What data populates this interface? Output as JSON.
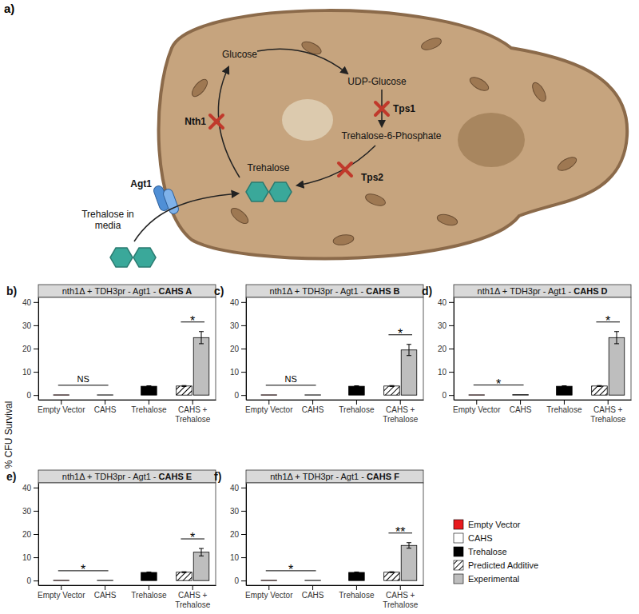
{
  "diagram": {
    "panel": "a)",
    "metabolites": [
      "Glucose",
      "UDP-Glucose",
      "Trehalose-6-Phosphate",
      "Trehalose"
    ],
    "enzymes": [
      {
        "label": "Nth1",
        "blocked": true
      },
      {
        "label": "Tps1",
        "blocked": true
      },
      {
        "label": "Tps2",
        "blocked": true
      },
      {
        "label": "Agt1",
        "blocked": false
      }
    ],
    "media_label": [
      "Trehalose in",
      "media"
    ]
  },
  "figure": {
    "y_label": "% CFU Survival"
  },
  "chart_data": [
    {
      "type": "bar",
      "panel": "b)",
      "title": "nth1Δ + TDH3pr - Agt1 - CAHS A",
      "categories": [
        "Empty Vector",
        "CAHS",
        "Trehalose",
        "CAHS + Trehalose"
      ],
      "series": [
        {
          "name": "Empty Vector",
          "color": "#e8191d",
          "values": [
            0.1,
            null,
            null,
            null
          ],
          "errors": [
            null,
            null,
            null,
            null
          ]
        },
        {
          "name": "CAHS",
          "color": "#ffffff",
          "values": [
            null,
            0.1,
            null,
            null
          ],
          "errors": [
            null,
            null,
            null,
            null
          ]
        },
        {
          "name": "Trehalose",
          "color": "#000000",
          "values": [
            null,
            null,
            3.8,
            null
          ],
          "errors": [
            null,
            null,
            0.2,
            null
          ]
        },
        {
          "name": "Predicted Additive",
          "color": "#ffffff",
          "marker": "hatch",
          "values": [
            null,
            null,
            null,
            3.9
          ],
          "errors": [
            null,
            null,
            null,
            0.2
          ]
        },
        {
          "name": "Experimental",
          "color": "#bebebe",
          "values": [
            null,
            null,
            null,
            24.7
          ],
          "errors": [
            null,
            null,
            null,
            2.6
          ]
        }
      ],
      "ylim": [
        -2,
        42
      ],
      "yticks": [
        0,
        10,
        20,
        30,
        40
      ],
      "grid": false,
      "significance": [
        {
          "label": "NS",
          "series": [
            "Empty Vector",
            "CAHS"
          ]
        },
        {
          "label": "*",
          "series": [
            "Predicted Additive",
            "Experimental"
          ]
        }
      ]
    },
    {
      "type": "bar",
      "panel": "c)",
      "title": "nth1Δ + TDH3pr - Agt1 - CAHS B",
      "categories": [
        "Empty Vector",
        "CAHS",
        "Trehalose",
        "CAHS + Trehalose"
      ],
      "series": [
        {
          "name": "Empty Vector",
          "color": "#e8191d",
          "values": [
            0.1,
            null,
            null,
            null
          ],
          "errors": [
            null,
            null,
            null,
            null
          ]
        },
        {
          "name": "CAHS",
          "color": "#ffffff",
          "values": [
            null,
            0.1,
            null,
            null
          ],
          "errors": [
            null,
            null,
            null,
            null
          ]
        },
        {
          "name": "Trehalose",
          "color": "#000000",
          "values": [
            null,
            null,
            3.8,
            null
          ],
          "errors": [
            null,
            null,
            0.2,
            null
          ]
        },
        {
          "name": "Predicted Additive",
          "color": "#ffffff",
          "marker": "hatch",
          "values": [
            null,
            null,
            null,
            3.9
          ],
          "errors": [
            null,
            null,
            null,
            0.2
          ]
        },
        {
          "name": "Experimental",
          "color": "#bebebe",
          "values": [
            null,
            null,
            null,
            19.4
          ],
          "errors": [
            null,
            null,
            null,
            2.4
          ]
        }
      ],
      "ylim": [
        -2,
        42
      ],
      "yticks": [
        0,
        10,
        20,
        30,
        40
      ],
      "grid": false,
      "significance": [
        {
          "label": "NS",
          "series": [
            "Empty Vector",
            "CAHS"
          ]
        },
        {
          "label": "*",
          "series": [
            "Predicted Additive",
            "Experimental"
          ]
        }
      ]
    },
    {
      "type": "bar",
      "panel": "d)",
      "title": "nth1Δ + TDH3pr - Agt1 - CAHS D",
      "categories": [
        "Empty Vector",
        "CAHS",
        "Trehalose",
        "CAHS + Trehalose"
      ],
      "series": [
        {
          "name": "Empty Vector",
          "color": "#e8191d",
          "values": [
            0.1,
            null,
            null,
            null
          ],
          "errors": [
            null,
            null,
            null,
            null
          ]
        },
        {
          "name": "CAHS",
          "color": "#ffffff",
          "values": [
            null,
            0.2,
            null,
            null
          ],
          "errors": [
            null,
            null,
            null,
            null
          ]
        },
        {
          "name": "Trehalose",
          "color": "#000000",
          "values": [
            null,
            null,
            3.8,
            null
          ],
          "errors": [
            null,
            null,
            0.2,
            null
          ]
        },
        {
          "name": "Predicted Additive",
          "color": "#ffffff",
          "marker": "hatch",
          "values": [
            null,
            null,
            null,
            3.9
          ],
          "errors": [
            null,
            null,
            null,
            0.2
          ]
        },
        {
          "name": "Experimental",
          "color": "#bebebe",
          "values": [
            null,
            null,
            null,
            24.7
          ],
          "errors": [
            null,
            null,
            null,
            2.6
          ]
        }
      ],
      "ylim": [
        -2,
        42
      ],
      "yticks": [
        0,
        10,
        20,
        30,
        40
      ],
      "grid": false,
      "significance": [
        {
          "label": "*",
          "series": [
            "Empty Vector",
            "CAHS"
          ]
        },
        {
          "label": "*",
          "series": [
            "Predicted Additive",
            "Experimental"
          ]
        }
      ]
    },
    {
      "type": "bar",
      "panel": "e)",
      "title": "nth1Δ + TDH3pr - Agt1 - CAHS E",
      "categories": [
        "Empty Vector",
        "CAHS",
        "Trehalose",
        "CAHS + Trehalose"
      ],
      "series": [
        {
          "name": "Empty Vector",
          "color": "#e8191d",
          "values": [
            0.1,
            null,
            null,
            null
          ],
          "errors": [
            null,
            null,
            null,
            null
          ]
        },
        {
          "name": "CAHS",
          "color": "#ffffff",
          "values": [
            null,
            0.1,
            null,
            null
          ],
          "errors": [
            null,
            null,
            null,
            null
          ]
        },
        {
          "name": "Trehalose",
          "color": "#000000",
          "values": [
            null,
            null,
            3.5,
            null
          ],
          "errors": [
            null,
            null,
            0.2,
            null
          ]
        },
        {
          "name": "Predicted Additive",
          "color": "#ffffff",
          "marker": "hatch",
          "values": [
            null,
            null,
            null,
            3.6
          ],
          "errors": [
            null,
            null,
            null,
            0.2
          ]
        },
        {
          "name": "Experimental",
          "color": "#bebebe",
          "values": [
            null,
            null,
            null,
            12.2
          ],
          "errors": [
            null,
            null,
            null,
            1.6
          ]
        }
      ],
      "ylim": [
        -2,
        42
      ],
      "yticks": [
        0,
        10,
        20,
        30,
        40
      ],
      "grid": false,
      "significance": [
        {
          "label": "*",
          "series": [
            "Empty Vector",
            "CAHS"
          ]
        },
        {
          "label": "*",
          "series": [
            "Predicted Additive",
            "Experimental"
          ]
        }
      ]
    },
    {
      "type": "bar",
      "panel": "f)",
      "title": "nth1Δ + TDH3pr - Agt1 - CAHS F",
      "categories": [
        "Empty Vector",
        "CAHS",
        "Trehalose",
        "CAHS + Trehalose"
      ],
      "series": [
        {
          "name": "Empty Vector",
          "color": "#e8191d",
          "values": [
            0.1,
            null,
            null,
            null
          ],
          "errors": [
            null,
            null,
            null,
            null
          ]
        },
        {
          "name": "CAHS",
          "color": "#ffffff",
          "values": [
            null,
            0.1,
            null,
            null
          ],
          "errors": [
            null,
            null,
            null,
            null
          ]
        },
        {
          "name": "Trehalose",
          "color": "#000000",
          "values": [
            null,
            null,
            3.5,
            null
          ],
          "errors": [
            null,
            null,
            0.2,
            null
          ]
        },
        {
          "name": "Predicted Additive",
          "color": "#ffffff",
          "marker": "hatch",
          "values": [
            null,
            null,
            null,
            3.6
          ],
          "errors": [
            null,
            null,
            null,
            0.2
          ]
        },
        {
          "name": "Experimental",
          "color": "#bebebe",
          "values": [
            null,
            null,
            null,
            15.1
          ],
          "errors": [
            null,
            null,
            null,
            1.2
          ]
        }
      ],
      "ylim": [
        -2,
        42
      ],
      "yticks": [
        0,
        10,
        20,
        30,
        40
      ],
      "grid": false,
      "legend": "right",
      "significance": [
        {
          "label": "*",
          "series": [
            "Empty Vector",
            "CAHS"
          ]
        },
        {
          "label": "**",
          "series": [
            "Predicted Additive",
            "Experimental"
          ]
        }
      ]
    }
  ]
}
